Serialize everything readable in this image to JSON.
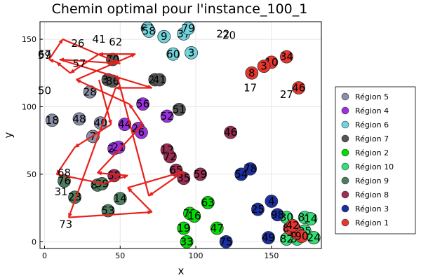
{
  "chart_data": {
    "type": "scatter",
    "title": "Chemin optimal pour l'instance_100_1",
    "xlabel": "x",
    "ylabel": "y",
    "xlim": [
      -3,
      183
    ],
    "ylim": [
      -5,
      163
    ],
    "xticks": [
      0,
      50,
      100,
      150
    ],
    "yticks": [
      0,
      50,
      100,
      150
    ],
    "grid": true,
    "legend_position": "right",
    "series": [
      {
        "name": "Région 5",
        "color": "#8a8fa8",
        "points": [
          [
            18,
            5,
            90
          ],
          [
            48,
            23,
            91
          ],
          [
            40,
            37,
            88
          ],
          [
            7,
            32,
            78
          ],
          [
            28,
            30,
            111
          ]
        ]
      },
      {
        "name": "Région 4",
        "color": "#9b30e0",
        "points": [
          [
            56,
            65,
            102
          ],
          [
            44,
            53,
            87
          ],
          [
            26,
            62,
            84
          ],
          [
            6,
            64,
            81
          ],
          [
            52,
            81,
            93
          ],
          [
            20,
            46,
            69
          ],
          [
            21,
            49,
            70
          ]
        ]
      },
      {
        "name": "Région 6",
        "color": "#6fd4dc",
        "points": [
          [
            64,
            68,
            158
          ],
          [
            58,
            69,
            156
          ],
          [
            9,
            79,
            152
          ],
          [
            37,
            92,
            154
          ],
          [
            79,
            95,
            158
          ],
          [
            60,
            85,
            139
          ],
          [
            3,
            97,
            140
          ]
        ]
      },
      {
        "name": "Région 7",
        "color": "#555555",
        "points": [
          [
            70,
            45,
            135
          ],
          [
            36,
            42,
            120
          ],
          [
            86,
            45,
            119
          ],
          [
            21,
            73,
            120
          ],
          [
            41,
            76,
            120
          ],
          [
            51,
            89,
            98
          ]
        ]
      },
      {
        "name": "Région 2",
        "color": "#00dd00",
        "points": [
          [
            71,
            96,
            21
          ],
          [
            16,
            99,
            19
          ],
          [
            63,
            108,
            29
          ],
          [
            19,
            92,
            10
          ],
          [
            33,
            94,
            0
          ],
          [
            47,
            114,
            10
          ]
        ]
      },
      {
        "name": "Région 10",
        "color": "#33e077",
        "points": [
          [
            30,
            160,
            18
          ],
          [
            89,
            172,
            18
          ],
          [
            14,
            176,
            17
          ],
          [
            80,
            165,
            10
          ],
          [
            95,
            172,
            8
          ],
          [
            24,
            178,
            3
          ],
          [
            82,
            160,
            2
          ],
          [
            85,
            167,
            2
          ]
        ]
      },
      {
        "name": "Région 9",
        "color": "#4b7d5f",
        "points": [
          [
            76,
            13,
            45
          ],
          [
            23,
            20,
            33
          ],
          [
            83,
            35,
            42
          ],
          [
            39,
            38,
            43
          ],
          [
            53,
            42,
            23
          ],
          [
            14,
            50,
            32
          ]
        ]
      },
      {
        "name": "Région 8",
        "color": "#9c2d54",
        "points": [
          [
            46,
            123,
            81
          ],
          [
            12,
            81,
            68
          ],
          [
            72,
            83,
            63
          ],
          [
            59,
            103,
            50
          ],
          [
            55,
            46,
            49
          ],
          [
            65,
            87,
            53
          ],
          [
            35,
            92,
            47
          ]
        ]
      },
      {
        "name": "Région 3",
        "color": "#1c2fa0",
        "points": [
          [
            78,
            136,
            54
          ],
          [
            54,
            130,
            50
          ],
          [
            75,
            120,
            0
          ],
          [
            49,
            148,
            3
          ],
          [
            25,
            141,
            24
          ],
          [
            4,
            150,
            30
          ],
          [
            98,
            154,
            20
          ]
        ]
      },
      {
        "name": "Région 1",
        "color": "#e8352e",
        "points": [
          [
            34,
            160,
            137
          ],
          [
            10,
            150,
            133
          ],
          [
            3,
            145,
            130
          ],
          [
            8,
            137,
            125
          ],
          [
            46,
            168,
            114
          ],
          [
            85,
            162,
            10
          ],
          [
            66,
            167,
            6
          ],
          [
            90,
            170,
            4
          ],
          [
            42,
            164,
            12
          ]
        ]
      }
    ],
    "label_only_points": [
      [
        67,
        0,
        139
      ],
      [
        59,
        0,
        138
      ],
      [
        26,
        22,
        147
      ],
      [
        41,
        36,
        150
      ],
      [
        62,
        47,
        148
      ],
      [
        57,
        23,
        132
      ],
      [
        50,
        0,
        112
      ],
      [
        22,
        118,
        154
      ],
      [
        20,
        122,
        153
      ],
      [
        17,
        136,
        114
      ],
      [
        27,
        160,
        109
      ],
      [
        68,
        13,
        51
      ],
      [
        31,
        11,
        37
      ],
      [
        73,
        14,
        13
      ]
    ],
    "route": [
      [
        36,
        120
      ],
      [
        44,
        87
      ],
      [
        20,
        70
      ],
      [
        8,
        50
      ],
      [
        39,
        43
      ],
      [
        55,
        49
      ],
      [
        35,
        51
      ],
      [
        65,
        87
      ],
      [
        56,
        102
      ],
      [
        21,
        120
      ],
      [
        60,
        139
      ],
      [
        36,
        139
      ],
      [
        17,
        125
      ],
      [
        8,
        133
      ],
      [
        3,
        135
      ],
      [
        12,
        150
      ],
      [
        50,
        132
      ],
      [
        10,
        135
      ],
      [
        71,
        114
      ],
      [
        47,
        114
      ],
      [
        16,
        18
      ],
      [
        71,
        22
      ],
      [
        55,
        40
      ],
      [
        92,
        52
      ],
      [
        69,
        34
      ],
      [
        48,
        123
      ]
    ]
  }
}
